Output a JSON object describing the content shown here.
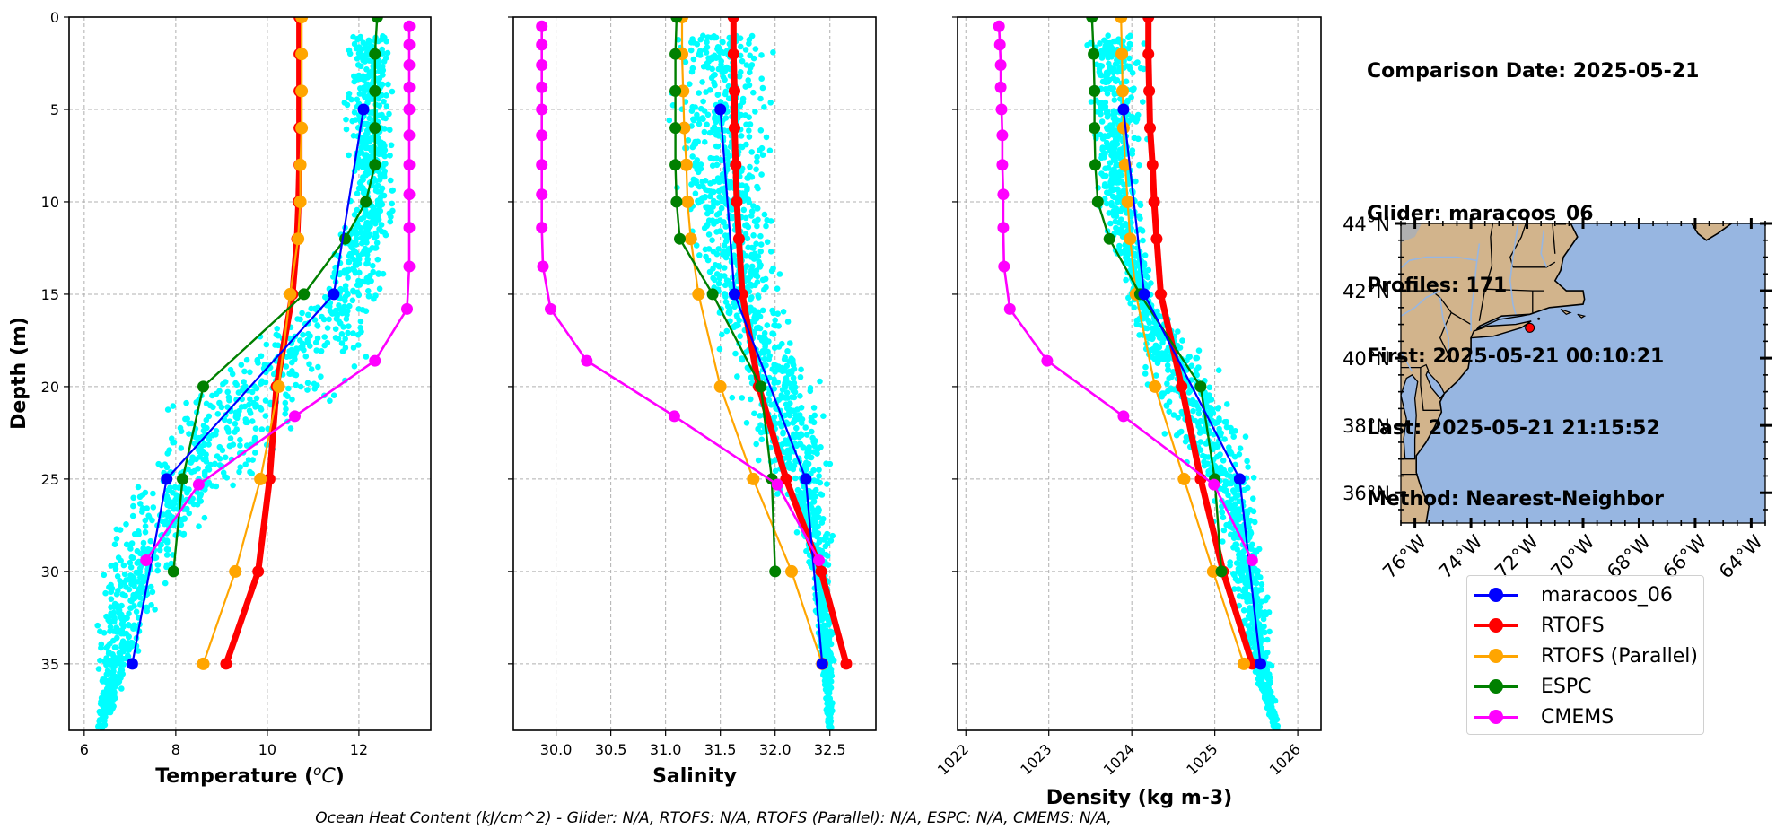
{
  "info": {
    "comparison_date": "Comparison Date: 2025-05-21",
    "glider": "Glider: maracoos_06",
    "profiles": "Profiles: 171",
    "first": "First: 2025-05-21 00:10:21",
    "last": "Last: 2025-05-21 21:15:52",
    "method": "Method: Nearest-Neighbor"
  },
  "footnote": "Ocean Heat Content (kJ/cm^2) - Glider: N/A,  RTOFS: N/A,  RTOFS (Parallel): N/A,  ESPC: N/A,  CMEMS: N/A,",
  "legend": [
    {
      "label": "maracoos_06",
      "color": "#0000ff"
    },
    {
      "label": "RTOFS",
      "color": "#ff0000"
    },
    {
      "label": "RTOFS (Parallel)",
      "color": "#ffa500"
    },
    {
      "label": "ESPC",
      "color": "#008000"
    },
    {
      "label": "CMEMS",
      "color": "#ff00ff"
    }
  ],
  "colors": {
    "scatter": "#00ffff",
    "land": "#d2b48c",
    "ocean": "#97b6e1",
    "grid": "#b0b0b0",
    "glider_marker": "#ff0000"
  },
  "chart_data": [
    {
      "type": "line",
      "title": "",
      "xlabel": "Temperature (°C)",
      "ylabel": "Depth (m)",
      "xlim": [
        5.67,
        13.57
      ],
      "ylim": [
        38.6,
        0
      ],
      "xticks": [
        6,
        8,
        10,
        12
      ],
      "xtick_labels": [
        "6",
        "8",
        "10",
        "12"
      ],
      "yticks": [
        0,
        5,
        10,
        15,
        20,
        25,
        30,
        35
      ],
      "ytick_labels": [
        "0",
        "5",
        "10",
        "15",
        "20",
        "25",
        "30",
        "35"
      ],
      "grid": true,
      "scatter_cloud": {
        "name": "glider profiles",
        "color": "#00ffff",
        "envelope": [
          [
            1,
            11.6,
            12.9
          ],
          [
            5,
            11.5,
            12.9
          ],
          [
            10,
            11.7,
            12.9
          ],
          [
            15,
            10.8,
            12.7
          ],
          [
            18,
            9.0,
            12.5
          ],
          [
            20,
            8.0,
            12.0
          ],
          [
            22,
            7.3,
            11.0
          ],
          [
            25,
            6.7,
            10.0
          ],
          [
            28,
            6.4,
            8.6
          ],
          [
            31,
            6.2,
            7.9
          ],
          [
            35,
            6.2,
            7.2
          ],
          [
            38.5,
            6.2,
            6.5
          ]
        ]
      },
      "series": [
        {
          "name": "maracoos_06",
          "depth": [
            5,
            15,
            25,
            35
          ],
          "values": [
            12.1,
            11.45,
            7.8,
            7.05
          ]
        },
        {
          "name": "RTOFS",
          "depth": [
            0,
            2,
            4,
            6,
            8,
            10,
            12,
            15,
            20,
            25,
            30,
            35
          ],
          "values": [
            10.7,
            10.7,
            10.7,
            10.7,
            10.7,
            10.68,
            10.65,
            10.55,
            10.2,
            10.05,
            9.8,
            9.1
          ]
        },
        {
          "name": "RTOFS (Parallel)",
          "depth": [
            0,
            2,
            4,
            6,
            8,
            10,
            12,
            15,
            20,
            25,
            30,
            35
          ],
          "values": [
            10.75,
            10.75,
            10.75,
            10.75,
            10.72,
            10.72,
            10.67,
            10.5,
            10.25,
            9.85,
            9.3,
            8.6
          ]
        },
        {
          "name": "ESPC",
          "depth": [
            0,
            2,
            4,
            6,
            8,
            10,
            12,
            15,
            20,
            25,
            30
          ],
          "values": [
            12.4,
            12.35,
            12.35,
            12.35,
            12.35,
            12.15,
            11.7,
            10.8,
            8.6,
            8.15,
            7.95
          ]
        },
        {
          "name": "CMEMS",
          "depth": [
            0.5,
            1.5,
            2.6,
            3.8,
            5.0,
            6.4,
            8.0,
            9.6,
            11.4,
            13.5,
            15.8,
            18.6,
            21.6,
            25.3,
            29.4
          ],
          "values": [
            13.1,
            13.1,
            13.1,
            13.1,
            13.1,
            13.1,
            13.1,
            13.1,
            13.1,
            13.1,
            13.05,
            12.35,
            10.6,
            8.5,
            7.35
          ]
        }
      ]
    },
    {
      "type": "line",
      "title": "",
      "xlabel": "Salinity",
      "ylabel": "",
      "xlim": [
        29.61,
        32.92
      ],
      "ylim": [
        38.6,
        0
      ],
      "xticks": [
        30.0,
        30.5,
        31.0,
        31.5,
        32.0,
        32.5
      ],
      "xtick_labels": [
        "30.0",
        "30.5",
        "31.0",
        "31.5",
        "32.0",
        "32.5"
      ],
      "yticks": [
        0,
        5,
        10,
        15,
        20,
        25,
        30,
        35
      ],
      "grid": true,
      "scatter_cloud": {
        "name": "glider profiles",
        "color": "#00ffff",
        "envelope": [
          [
            1,
            30.9,
            32.1
          ],
          [
            5,
            30.9,
            32.1
          ],
          [
            10,
            31.0,
            32.1
          ],
          [
            15,
            31.3,
            32.1
          ],
          [
            18,
            31.4,
            32.4
          ],
          [
            20,
            31.5,
            32.5
          ],
          [
            23,
            31.7,
            32.6
          ],
          [
            26,
            32.0,
            32.55
          ],
          [
            30,
            32.3,
            32.55
          ],
          [
            35,
            32.4,
            32.55
          ],
          [
            38.5,
            32.48,
            32.52
          ]
        ]
      },
      "series": [
        {
          "name": "maracoos_06",
          "depth": [
            5,
            15,
            25,
            35
          ],
          "values": [
            31.5,
            31.63,
            32.28,
            32.43
          ]
        },
        {
          "name": "RTOFS",
          "depth": [
            0,
            2,
            4,
            6,
            8,
            10,
            12,
            15,
            20,
            25,
            30,
            35
          ],
          "values": [
            31.62,
            31.62,
            31.63,
            31.63,
            31.64,
            31.65,
            31.67,
            31.7,
            31.85,
            32.1,
            32.42,
            32.65
          ]
        },
        {
          "name": "RTOFS (Parallel)",
          "depth": [
            0,
            2,
            4,
            6,
            8,
            10,
            12,
            15,
            20,
            25,
            30,
            35
          ],
          "values": [
            31.15,
            31.15,
            31.16,
            31.17,
            31.19,
            31.2,
            31.23,
            31.3,
            31.5,
            31.8,
            32.15,
            32.43
          ]
        },
        {
          "name": "ESPC",
          "depth": [
            0,
            2,
            4,
            6,
            8,
            10,
            12,
            15,
            20,
            25,
            30
          ],
          "values": [
            31.1,
            31.09,
            31.09,
            31.09,
            31.09,
            31.1,
            31.13,
            31.43,
            31.87,
            31.97,
            32.0
          ]
        },
        {
          "name": "CMEMS",
          "depth": [
            0.5,
            1.5,
            2.6,
            3.8,
            5.0,
            6.4,
            8.0,
            9.6,
            11.4,
            13.5,
            15.8,
            18.6,
            21.6,
            25.3,
            29.4
          ],
          "values": [
            29.87,
            29.87,
            29.87,
            29.87,
            29.87,
            29.87,
            29.87,
            29.87,
            29.87,
            29.88,
            29.95,
            30.28,
            31.08,
            32.02,
            32.4
          ]
        }
      ]
    },
    {
      "type": "line",
      "title": "",
      "xlabel": "Density (kg m-3)",
      "ylabel": "",
      "xlim": [
        1021.9,
        1026.28
      ],
      "ylim": [
        38.6,
        0
      ],
      "xticks": [
        1022,
        1023,
        1024,
        1025,
        1026
      ],
      "xtick_labels": [
        "1022",
        "1023",
        "1024",
        "1025",
        "1026"
      ],
      "yticks": [
        0,
        5,
        10,
        15,
        20,
        25,
        30,
        35
      ],
      "grid": true,
      "scatter_cloud": {
        "name": "glider profiles",
        "color": "#00ffff",
        "envelope": [
          [
            1,
            1023.4,
            1024.2
          ],
          [
            5,
            1023.4,
            1024.2
          ],
          [
            10,
            1023.5,
            1024.2
          ],
          [
            15,
            1023.9,
            1024.3
          ],
          [
            18,
            1024.0,
            1024.9
          ],
          [
            20,
            1024.1,
            1025.2
          ],
          [
            23,
            1024.4,
            1025.5
          ],
          [
            26,
            1024.9,
            1025.6
          ],
          [
            30,
            1025.1,
            1025.7
          ],
          [
            35,
            1025.4,
            1025.7
          ],
          [
            38.5,
            1025.7,
            1025.78
          ]
        ]
      },
      "series": [
        {
          "name": "maracoos_06",
          "depth": [
            5,
            15,
            25,
            35
          ],
          "values": [
            1023.9,
            1024.15,
            1025.3,
            1025.55
          ]
        },
        {
          "name": "RTOFS",
          "depth": [
            0,
            2,
            4,
            6,
            8,
            10,
            12,
            15,
            20,
            25,
            30,
            35
          ],
          "values": [
            1024.2,
            1024.2,
            1024.21,
            1024.22,
            1024.25,
            1024.27,
            1024.3,
            1024.35,
            1024.6,
            1024.83,
            1025.1,
            1025.45
          ]
        },
        {
          "name": "RTOFS (Parallel)",
          "depth": [
            0,
            2,
            4,
            6,
            8,
            10,
            12,
            15,
            20,
            25,
            30,
            35
          ],
          "values": [
            1023.87,
            1023.88,
            1023.89,
            1023.9,
            1023.92,
            1023.95,
            1023.98,
            1024.05,
            1024.28,
            1024.63,
            1024.98,
            1025.35
          ]
        },
        {
          "name": "ESPC",
          "depth": [
            0,
            2,
            4,
            6,
            8,
            10,
            12,
            15,
            20,
            25,
            30
          ],
          "values": [
            1023.52,
            1023.54,
            1023.55,
            1023.55,
            1023.56,
            1023.59,
            1023.73,
            1024.1,
            1024.83,
            1025.0,
            1025.08
          ]
        },
        {
          "name": "CMEMS",
          "depth": [
            0.5,
            1.5,
            2.6,
            3.8,
            5.0,
            6.4,
            8.0,
            9.6,
            11.4,
            13.5,
            15.8,
            18.6,
            21.6,
            25.3,
            29.4
          ],
          "values": [
            1022.4,
            1022.41,
            1022.42,
            1022.42,
            1022.43,
            1022.44,
            1022.44,
            1022.45,
            1022.45,
            1022.46,
            1022.53,
            1022.98,
            1023.9,
            1024.99,
            1025.45
          ]
        }
      ]
    },
    {
      "type": "map",
      "title": "",
      "lon_range": [
        -76.5,
        -63.5
      ],
      "lat_range": [
        35.1,
        44.0
      ],
      "lon_ticks": [
        -76,
        -74,
        -72,
        -70,
        -68,
        -66,
        -64
      ],
      "lon_tick_labels": [
        "76°W",
        "74°W",
        "72°W",
        "70°W",
        "68°W",
        "66°W",
        "64°W"
      ],
      "lat_ticks": [
        44,
        42,
        40,
        38,
        36
      ],
      "lat_tick_labels": [
        "44°N",
        "42°N",
        "40°N",
        "38°N",
        "36°N"
      ],
      "glider_position": {
        "lon": -71.9,
        "lat": 40.9
      }
    }
  ]
}
